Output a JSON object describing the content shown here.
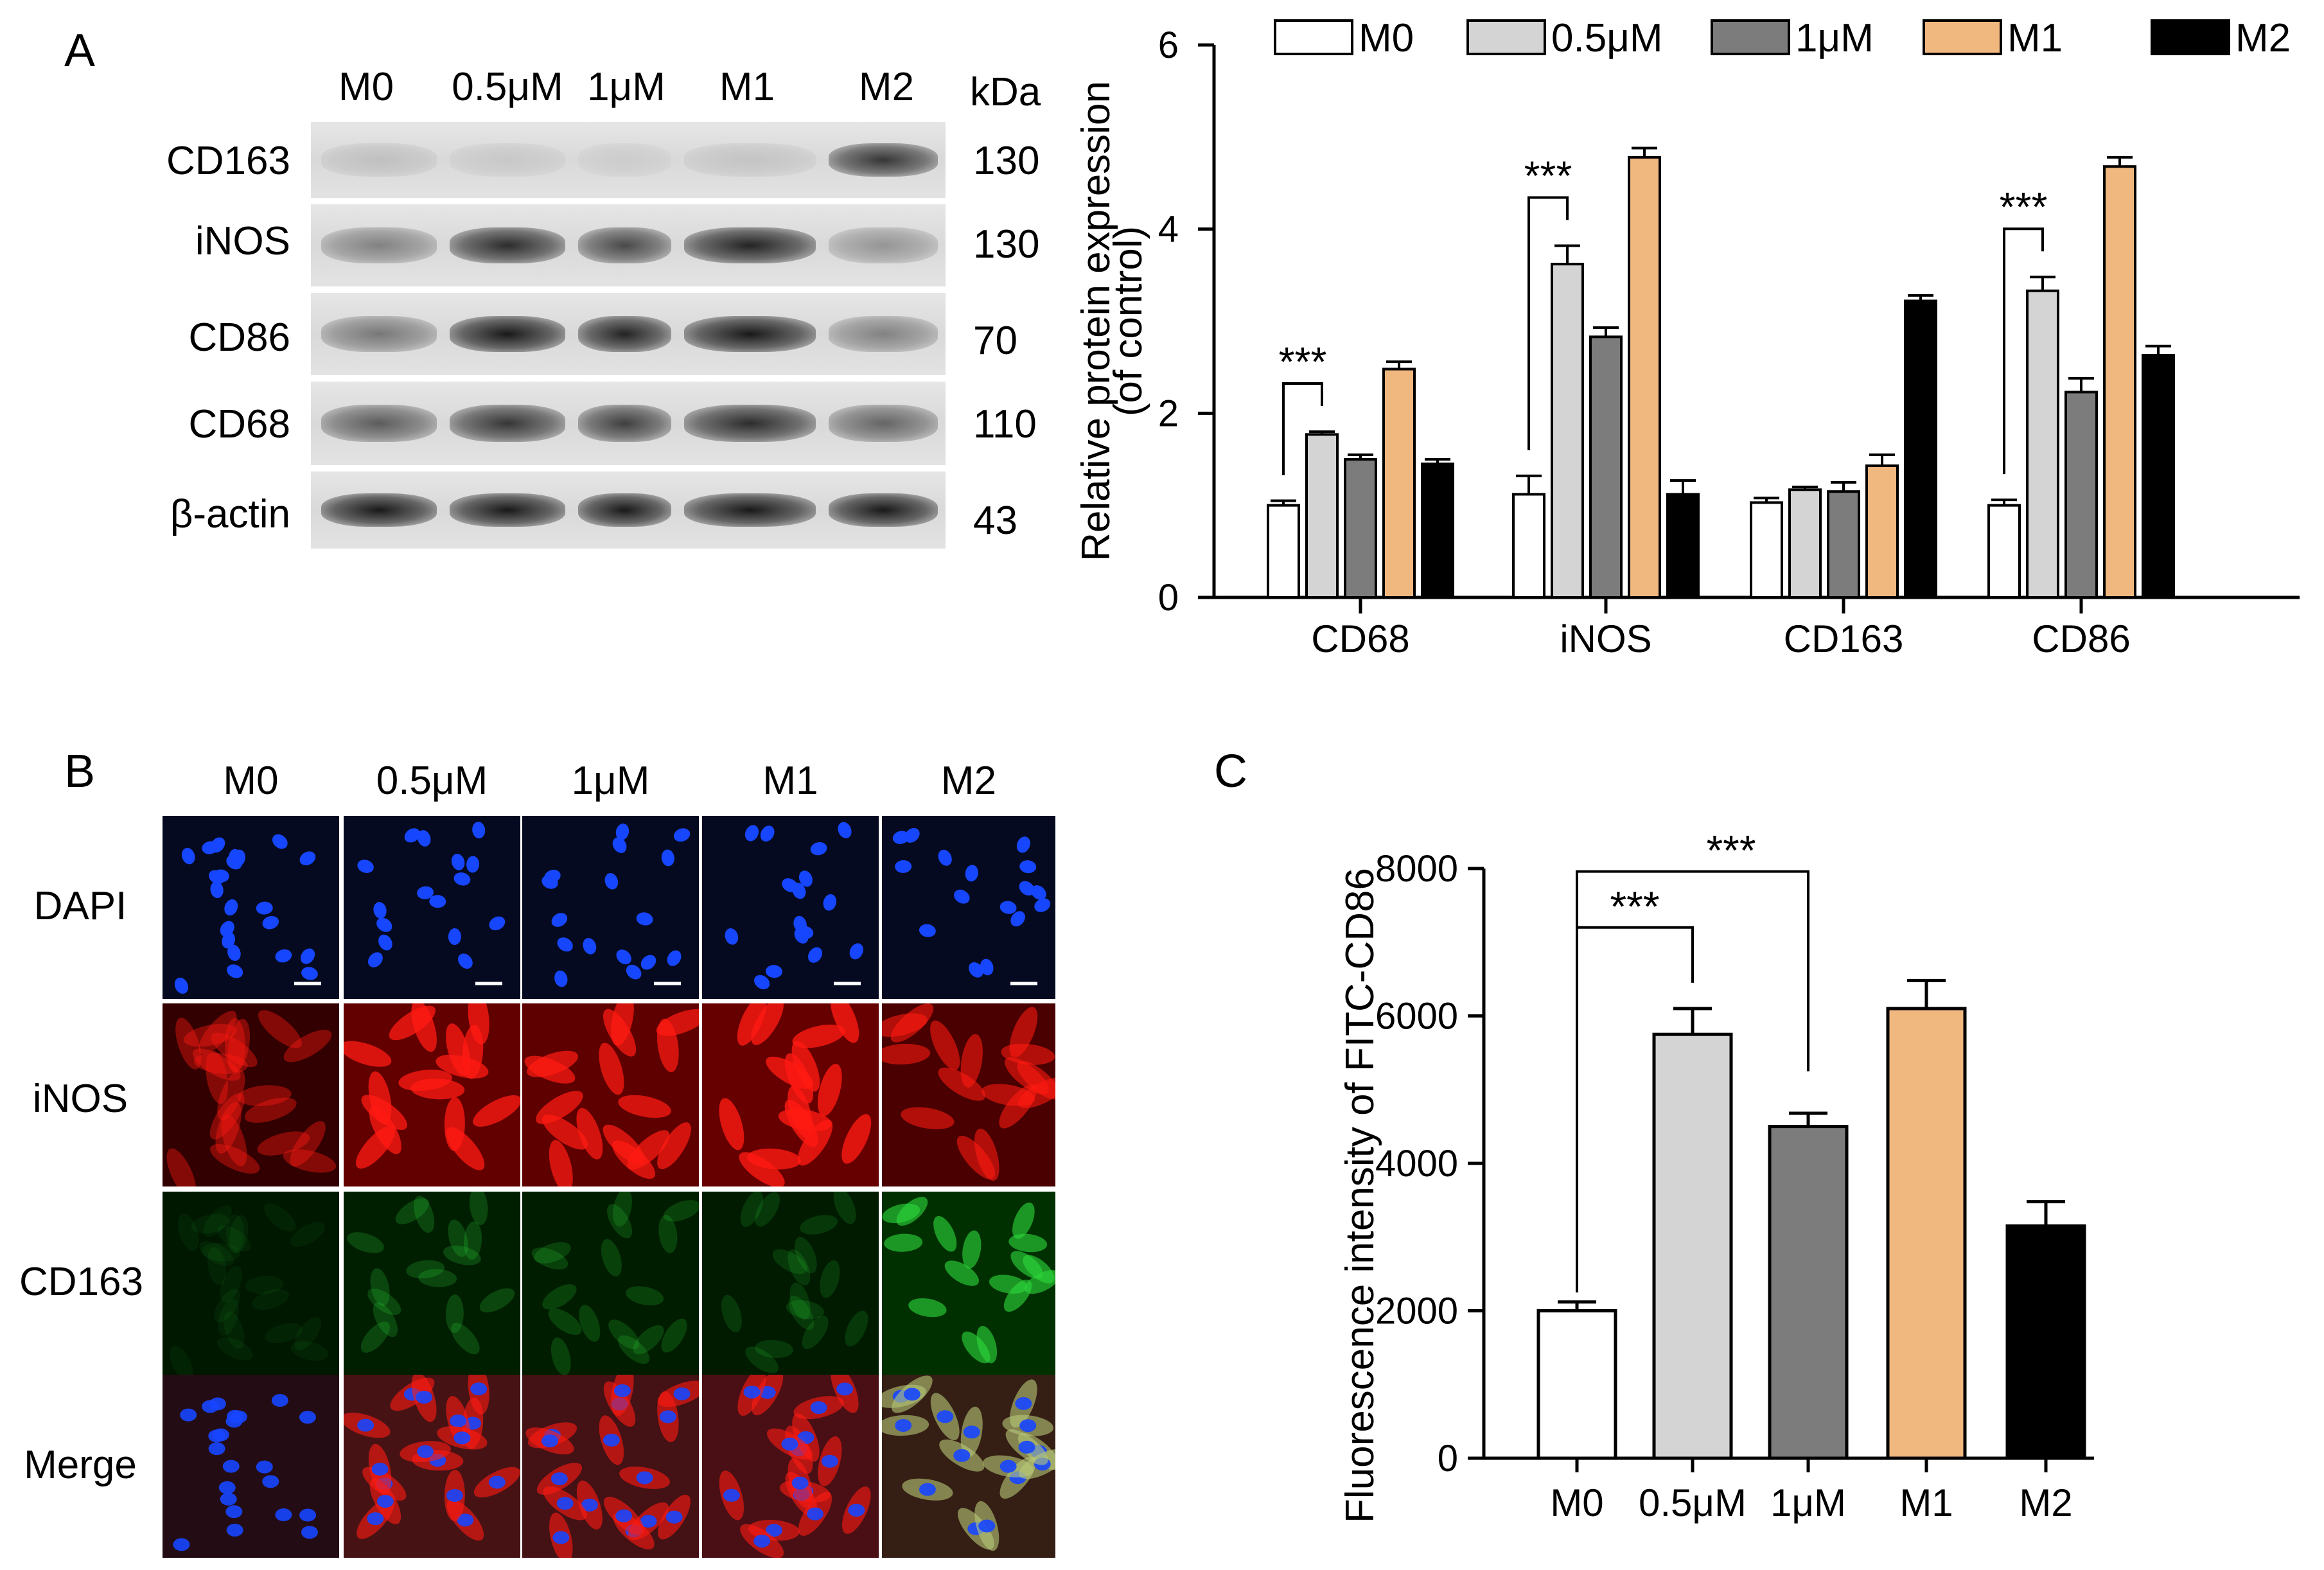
{
  "panel_a": {
    "letter": "A",
    "western_blot": {
      "lanes": [
        "M0",
        "0.5μM",
        "1μM",
        "M1",
        "M2"
      ],
      "kda_header": "kDa",
      "rows": [
        {
          "label": "CD163",
          "kda": "130"
        },
        {
          "label": "iNOS",
          "kda": "130"
        },
        {
          "label": "CD86",
          "kda": "70"
        },
        {
          "label": "CD68",
          "kda": "110"
        },
        {
          "label": "β-actin",
          "kda": "43"
        }
      ]
    }
  },
  "panel_b": {
    "letter": "B",
    "columns": [
      "M0",
      "0.5μM",
      "1μM",
      "M1",
      "M2"
    ],
    "rows": [
      "DAPI",
      "iNOS",
      "CD163",
      "Merge"
    ]
  },
  "panel_c": {
    "letter": "C"
  },
  "colors": {
    "M0": "#ffffff",
    "0.5uM": "#d4d4d4",
    "1uM": "#7c7c7c",
    "M1": "#f0b77f",
    "M2": "#000000",
    "dapi": "#1746ff",
    "inos": "#ff1a12",
    "cd163": "#2dd43a"
  },
  "chart_data": [
    {
      "type": "bar",
      "categories": [
        "CD68",
        "iNOS",
        "CD163",
        "CD86"
      ],
      "ylabel": "Relative protein expression (of control)",
      "ylim": [
        0,
        6
      ],
      "yticks": [
        0,
        2,
        4,
        6
      ],
      "legend": {
        "placement": "top",
        "entries": [
          "M0",
          "0.5μM",
          "1μM",
          "M1",
          "M2"
        ]
      },
      "series": [
        {
          "name": "M0",
          "values": [
            1.0,
            1.12,
            1.03,
            1.0
          ],
          "errors": [
            0.05,
            0.2,
            0.05,
            0.06
          ]
        },
        {
          "name": "0.5μM",
          "values": [
            1.77,
            3.62,
            1.17,
            3.33
          ],
          "errors": [
            0.03,
            0.2,
            0.03,
            0.15
          ]
        },
        {
          "name": "1μM",
          "values": [
            1.5,
            2.83,
            1.15,
            2.23
          ],
          "errors": [
            0.05,
            0.1,
            0.1,
            0.15
          ]
        },
        {
          "name": "M1",
          "values": [
            2.48,
            4.78,
            1.43,
            4.68
          ],
          "errors": [
            0.08,
            0.1,
            0.12,
            0.1
          ]
        },
        {
          "name": "M2",
          "values": [
            1.45,
            1.12,
            3.22,
            2.63
          ],
          "errors": [
            0.05,
            0.15,
            0.06,
            0.1
          ]
        }
      ],
      "significance": [
        {
          "category": "CD68",
          "label": "***"
        },
        {
          "category": "iNOS",
          "label": "***"
        },
        {
          "category": "CD86",
          "label": "***"
        }
      ]
    },
    {
      "type": "bar",
      "categories": [
        "M0",
        "0.5μM",
        "1μM",
        "M1",
        "M2"
      ],
      "ylabel": "Fluorescence intensity of FITC-CD86",
      "ylim": [
        0,
        8000
      ],
      "yticks": [
        0,
        2000,
        4000,
        6000,
        8000
      ],
      "values": [
        2000,
        5750,
        4500,
        6100,
        3150
      ],
      "errors": [
        120,
        350,
        180,
        380,
        330
      ],
      "significance": [
        {
          "from": "M0",
          "to": "0.5μM",
          "label": "***"
        },
        {
          "from": "M0",
          "to": "1μM",
          "label": "***"
        }
      ]
    }
  ]
}
